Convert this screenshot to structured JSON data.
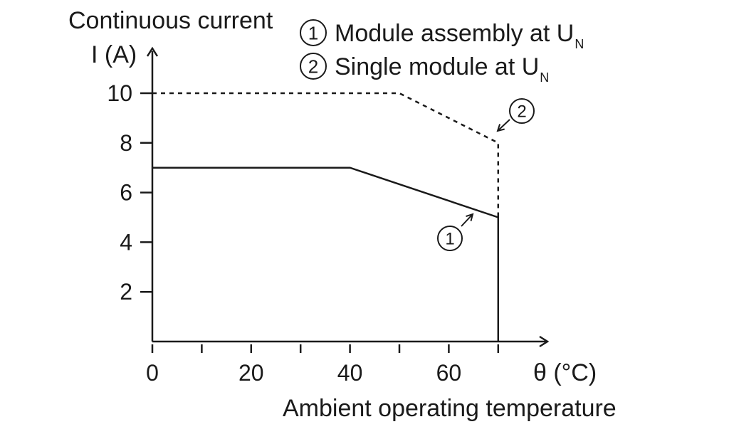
{
  "chart_data": {
    "type": "line",
    "ylabel_line1": "Continuous current",
    "ylabel_line2": "I (A)",
    "xlabel": "Ambient operating temperature",
    "xunit_label": "θ (°C)",
    "xlim": [
      0,
      80
    ],
    "ylim": [
      0,
      11
    ],
    "x_ticks": [
      0,
      10,
      20,
      30,
      40,
      50,
      60,
      70
    ],
    "x_tick_labels": [
      {
        "x": 0,
        "label": "0"
      },
      {
        "x": 20,
        "label": "20"
      },
      {
        "x": 40,
        "label": "40"
      },
      {
        "x": 60,
        "label": "60"
      }
    ],
    "y_ticks": [
      {
        "y": 2,
        "label": "2"
      },
      {
        "y": 4,
        "label": "4"
      },
      {
        "y": 6,
        "label": "6"
      },
      {
        "y": 8,
        "label": "8"
      },
      {
        "y": 10,
        "label": "10"
      }
    ],
    "legend": [
      {
        "marker": "1",
        "text": "Module assembly at U",
        "sub": "N"
      },
      {
        "marker": "2",
        "text": "Single module at U",
        "sub": "N"
      }
    ],
    "series": [
      {
        "marker": "1",
        "style": "solid",
        "points": [
          [
            0,
            7
          ],
          [
            40,
            7
          ],
          [
            70,
            5
          ],
          [
            70,
            0
          ]
        ]
      },
      {
        "marker": "2",
        "style": "dashed",
        "points": [
          [
            0,
            10
          ],
          [
            50,
            10
          ],
          [
            70,
            8
          ],
          [
            70,
            5
          ]
        ]
      }
    ],
    "grid": false,
    "legend_position": "top"
  }
}
